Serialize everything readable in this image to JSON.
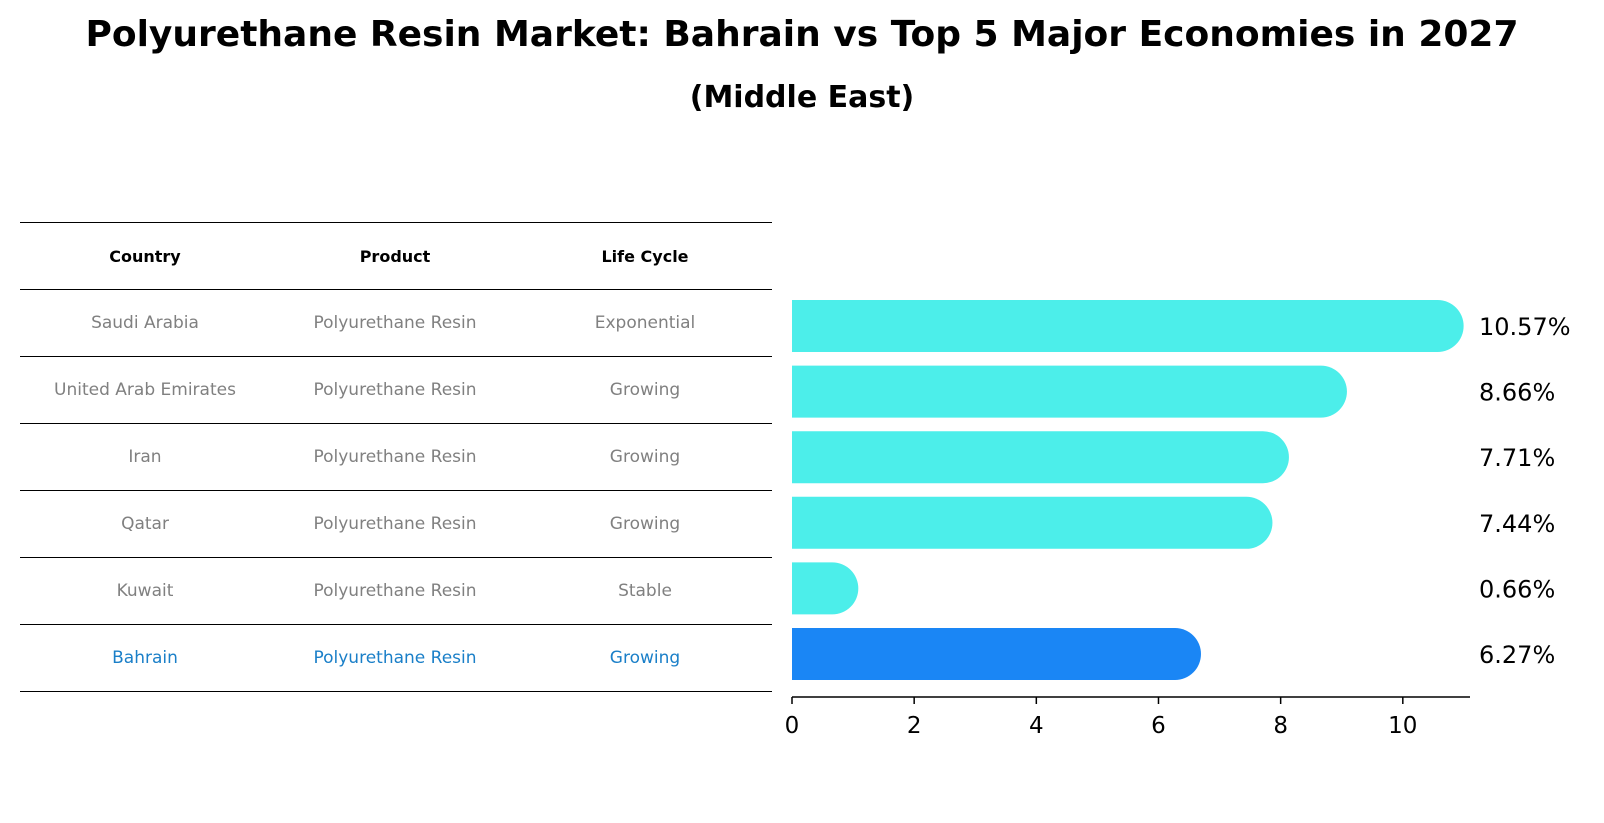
{
  "title": "Polyurethane Resin Market: Bahrain vs Top 5 Major Economies in 2027",
  "subtitle": "(Middle East)",
  "table": {
    "headers": [
      "Country",
      "Product",
      "Life Cycle"
    ],
    "rows": [
      [
        "Saudi Arabia",
        "Polyurethane Resin",
        "Exponential"
      ],
      [
        "United Arab Emirates",
        "Polyurethane Resin",
        "Growing"
      ],
      [
        "Iran",
        "Polyurethane Resin",
        "Growing"
      ],
      [
        "Qatar",
        "Polyurethane Resin",
        "Growing"
      ],
      [
        "Kuwait",
        "Polyurethane Resin",
        "Stable"
      ],
      [
        "Bahrain",
        "Polyurethane Resin",
        "Growing"
      ]
    ],
    "highlight_row": "Bahrain"
  },
  "chart_data": {
    "type": "bar",
    "orientation": "horizontal",
    "categories": [
      "Saudi Arabia",
      "United Arab Emirates",
      "Iran",
      "Qatar",
      "Kuwait",
      "Bahrain"
    ],
    "values": [
      10.57,
      8.66,
      7.71,
      7.44,
      0.66,
      6.27
    ],
    "value_labels": [
      "10.57%",
      "8.66%",
      "7.71%",
      "7.44%",
      "0.66%",
      "6.27%"
    ],
    "xlim": [
      0,
      11.1
    ],
    "xticks": [
      0,
      2,
      4,
      6,
      8,
      10
    ],
    "xlabel": "",
    "ylabel": "",
    "grid": false,
    "colors": {
      "default": "#4ceeea",
      "highlight": "#1a86f5"
    },
    "highlight": "Bahrain"
  }
}
